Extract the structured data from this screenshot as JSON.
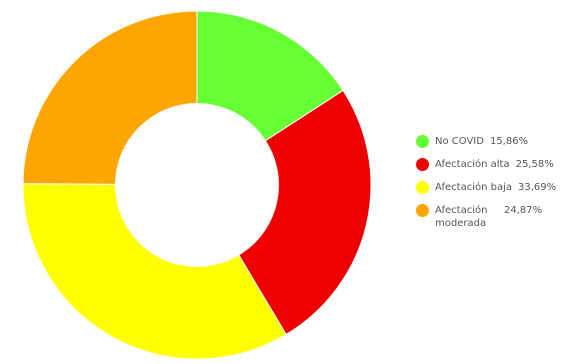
{
  "chart_data": {
    "type": "pie",
    "donut": true,
    "title": "",
    "legend_position": "right",
    "slices": [
      {
        "label": "No COVID",
        "value": 15.86,
        "value_text": "15,86%",
        "color": "#66ff33"
      },
      {
        "label": "Afectación alta",
        "value": 25.58,
        "value_text": "25,58%",
        "color": "#ee0000"
      },
      {
        "label": "Afectación baja",
        "value": 33.69,
        "value_text": "33,69%",
        "color": "#ffff00"
      },
      {
        "label": "Afectación moderada",
        "value": 24.87,
        "value_text": "24,87%",
        "color": "#ffa500"
      }
    ]
  }
}
